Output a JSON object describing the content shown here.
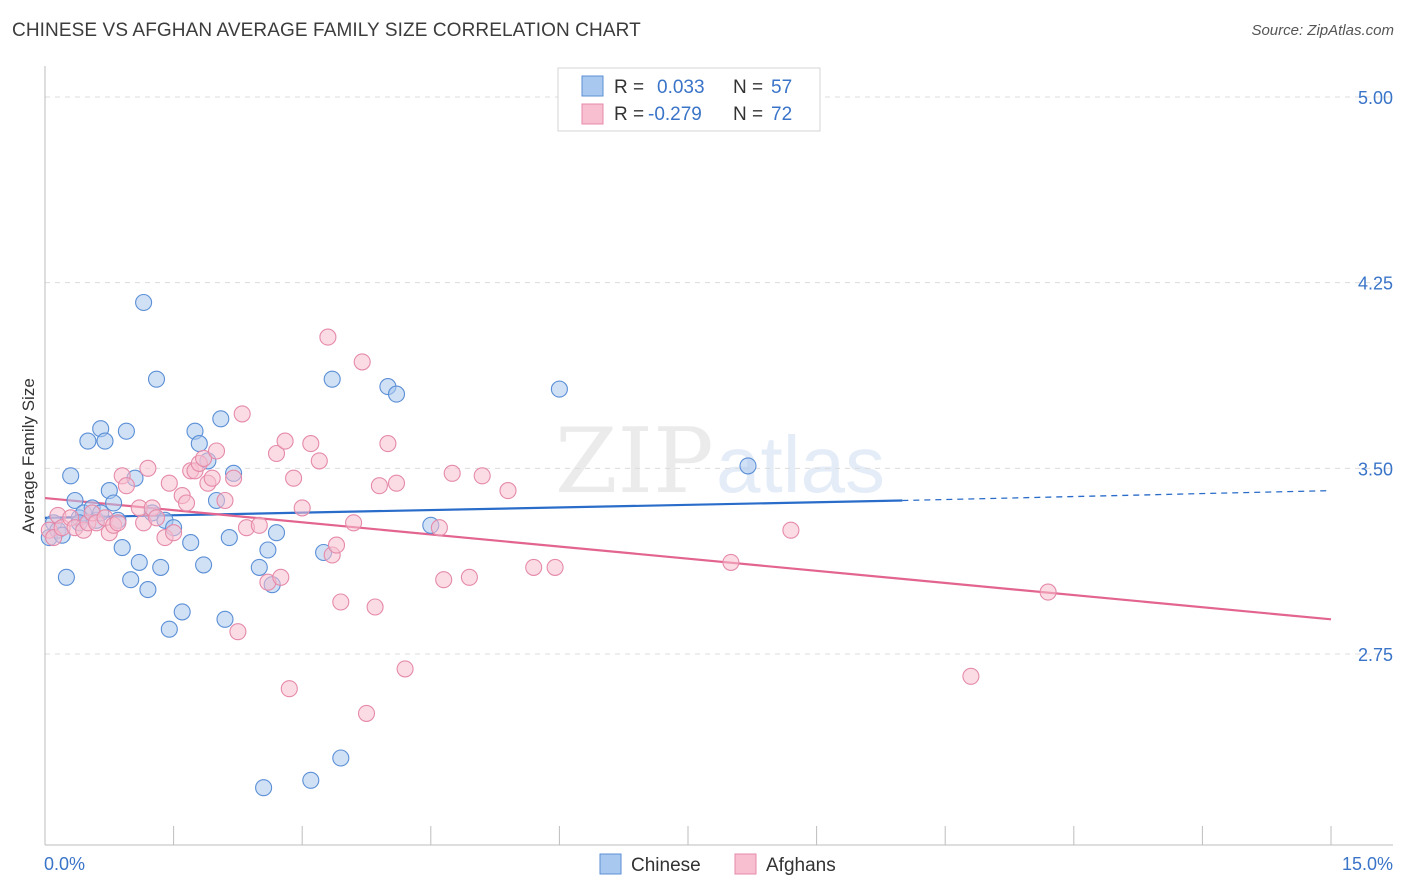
{
  "title": "CHINESE VS AFGHAN AVERAGE FAMILY SIZE CORRELATION CHART",
  "source": "Source: ZipAtlas.com",
  "watermark": {
    "zip": "ZIP",
    "atlas": "atlas"
  },
  "colors": {
    "chinese_fill": "#a9c8ef",
    "chinese_stroke": "#5b8fd6",
    "chinese_line": "#2a6cc9",
    "afghan_fill": "#f7bfd0",
    "afghan_stroke": "#e58aa9",
    "afghan_line": "#e2648f",
    "tick_label": "#3a74c8"
  },
  "legend": {
    "rows": [
      {
        "r_label": "R =",
        "r_value": "0.033",
        "n_label": "N =",
        "n_value": "57"
      },
      {
        "r_label": "R =",
        "r_value": "-0.279",
        "n_label": "N =",
        "n_value": "72"
      }
    ]
  },
  "bottom_legend": [
    "Chinese",
    "Afghans"
  ],
  "chart_data": {
    "type": "scatter",
    "title": "CHINESE VS AFGHAN AVERAGE FAMILY SIZE CORRELATION CHART",
    "xlabel": "",
    "ylabel": "Average Family Size",
    "xlim": [
      0,
      15
    ],
    "ylim": [
      2.0,
      5.1
    ],
    "x_tick_labels": [
      "0.0%",
      "15.0%"
    ],
    "y_ticks": [
      2.75,
      3.5,
      4.25,
      5.0
    ],
    "y_tick_labels": [
      "2.75",
      "3.50",
      "4.25",
      "5.00"
    ],
    "grid": true,
    "legend_position": "top-center",
    "series": [
      {
        "name": "Chinese",
        "r": 0.033,
        "n": 57,
        "trend": {
          "x_start": 0.0,
          "y_start": 3.3,
          "x_end": 10.0,
          "y_end": 3.37,
          "dashed_to_x": 15.0,
          "dashed_to_y": 3.41
        },
        "points": [
          [
            0.05,
            3.22
          ],
          [
            0.1,
            3.28
          ],
          [
            0.15,
            3.25
          ],
          [
            0.2,
            3.23
          ],
          [
            0.25,
            3.06
          ],
          [
            0.3,
            3.47
          ],
          [
            0.35,
            3.37
          ],
          [
            0.4,
            3.3
          ],
          [
            0.45,
            3.32
          ],
          [
            0.5,
            3.61
          ],
          [
            0.55,
            3.34
          ],
          [
            0.6,
            3.29
          ],
          [
            0.65,
            3.66
          ],
          [
            0.65,
            3.32
          ],
          [
            0.7,
            3.61
          ],
          [
            0.75,
            3.41
          ],
          [
            0.8,
            3.36
          ],
          [
            0.85,
            3.29
          ],
          [
            0.9,
            3.18
          ],
          [
            0.95,
            3.65
          ],
          [
            1.0,
            3.05
          ],
          [
            1.05,
            3.46
          ],
          [
            1.1,
            3.12
          ],
          [
            1.15,
            4.17
          ],
          [
            1.2,
            3.01
          ],
          [
            1.25,
            3.32
          ],
          [
            1.3,
            3.86
          ],
          [
            1.35,
            3.1
          ],
          [
            1.4,
            3.29
          ],
          [
            1.45,
            2.85
          ],
          [
            1.5,
            3.26
          ],
          [
            1.6,
            2.92
          ],
          [
            1.7,
            3.2
          ],
          [
            1.75,
            3.65
          ],
          [
            1.8,
            3.6
          ],
          [
            1.85,
            3.11
          ],
          [
            1.9,
            3.53
          ],
          [
            2.0,
            3.37
          ],
          [
            2.05,
            3.7
          ],
          [
            2.1,
            2.89
          ],
          [
            2.15,
            3.22
          ],
          [
            2.2,
            3.48
          ],
          [
            2.5,
            3.1
          ],
          [
            2.6,
            3.17
          ],
          [
            2.65,
            3.03
          ],
          [
            2.7,
            3.24
          ],
          [
            2.55,
            2.21
          ],
          [
            3.1,
            2.24
          ],
          [
            3.25,
            3.16
          ],
          [
            3.35,
            3.86
          ],
          [
            3.45,
            2.33
          ],
          [
            4.0,
            3.83
          ],
          [
            4.1,
            3.8
          ],
          [
            4.5,
            3.27
          ],
          [
            6.0,
            3.82
          ],
          [
            8.2,
            3.51
          ],
          [
            0.4,
            3.28
          ]
        ]
      },
      {
        "name": "Afghans",
        "r": -0.279,
        "n": 72,
        "trend": {
          "x_start": 0.0,
          "y_start": 3.38,
          "x_end": 15.0,
          "y_end": 2.89
        },
        "points": [
          [
            0.05,
            3.25
          ],
          [
            0.1,
            3.22
          ],
          [
            0.15,
            3.31
          ],
          [
            0.2,
            3.26
          ],
          [
            0.3,
            3.3
          ],
          [
            0.35,
            3.26
          ],
          [
            0.45,
            3.25
          ],
          [
            0.5,
            3.28
          ],
          [
            0.55,
            3.32
          ],
          [
            0.6,
            3.28
          ],
          [
            0.7,
            3.3
          ],
          [
            0.75,
            3.24
          ],
          [
            0.8,
            3.27
          ],
          [
            0.85,
            3.28
          ],
          [
            0.9,
            3.47
          ],
          [
            0.95,
            3.43
          ],
          [
            1.1,
            3.34
          ],
          [
            1.15,
            3.28
          ],
          [
            1.2,
            3.5
          ],
          [
            1.25,
            3.34
          ],
          [
            1.3,
            3.3
          ],
          [
            1.4,
            3.22
          ],
          [
            1.45,
            3.44
          ],
          [
            1.5,
            3.24
          ],
          [
            1.6,
            3.39
          ],
          [
            1.65,
            3.36
          ],
          [
            1.7,
            3.49
          ],
          [
            1.75,
            3.49
          ],
          [
            1.8,
            3.52
          ],
          [
            1.85,
            3.54
          ],
          [
            1.9,
            3.44
          ],
          [
            1.95,
            3.46
          ],
          [
            2.0,
            3.57
          ],
          [
            2.1,
            3.37
          ],
          [
            2.2,
            3.46
          ],
          [
            2.25,
            2.84
          ],
          [
            2.3,
            3.72
          ],
          [
            2.35,
            3.26
          ],
          [
            2.5,
            3.27
          ],
          [
            2.6,
            3.04
          ],
          [
            2.7,
            3.56
          ],
          [
            2.75,
            3.06
          ],
          [
            2.8,
            3.61
          ],
          [
            2.9,
            3.46
          ],
          [
            2.85,
            2.61
          ],
          [
            3.0,
            3.34
          ],
          [
            3.1,
            3.6
          ],
          [
            3.2,
            3.53
          ],
          [
            3.3,
            4.03
          ],
          [
            3.35,
            3.15
          ],
          [
            3.4,
            3.19
          ],
          [
            3.45,
            2.96
          ],
          [
            3.6,
            3.28
          ],
          [
            3.7,
            3.93
          ],
          [
            3.75,
            2.51
          ],
          [
            3.85,
            2.94
          ],
          [
            3.9,
            3.43
          ],
          [
            4.0,
            3.6
          ],
          [
            4.1,
            3.44
          ],
          [
            4.2,
            2.69
          ],
          [
            4.6,
            3.26
          ],
          [
            4.75,
            3.48
          ],
          [
            4.95,
            3.06
          ],
          [
            5.1,
            3.47
          ],
          [
            5.4,
            3.41
          ],
          [
            5.7,
            3.1
          ],
          [
            5.95,
            3.1
          ],
          [
            8.0,
            3.12
          ],
          [
            8.7,
            3.25
          ],
          [
            10.8,
            2.66
          ],
          [
            11.7,
            3.0
          ],
          [
            4.65,
            3.05
          ]
        ]
      }
    ]
  }
}
